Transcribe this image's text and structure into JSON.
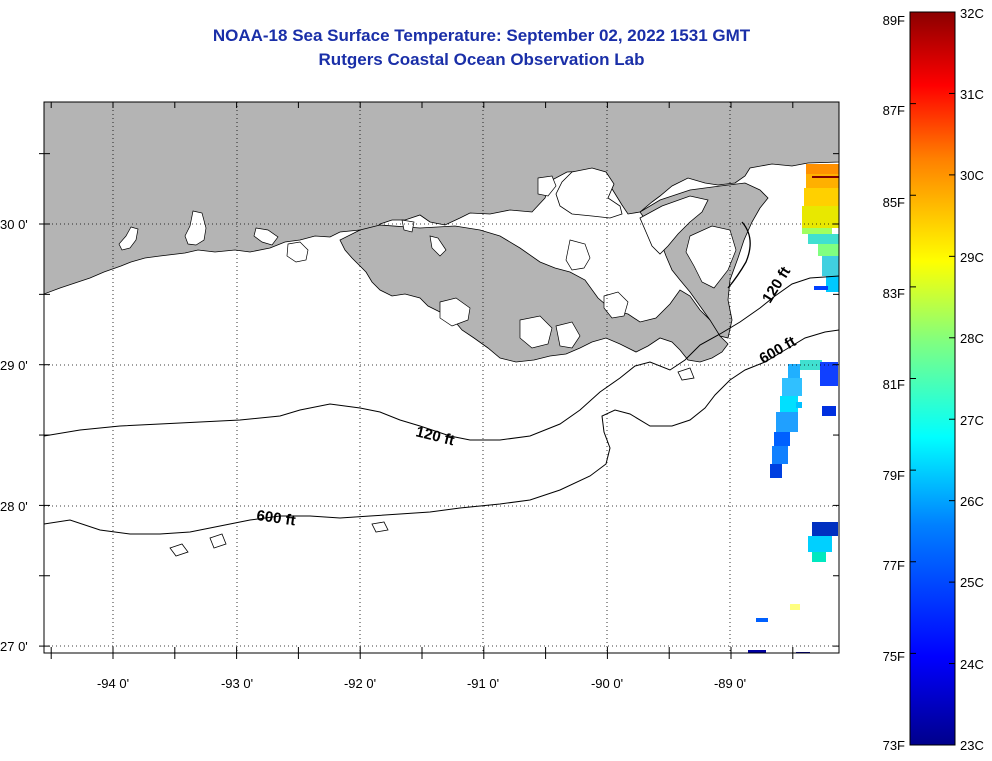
{
  "title": "NOAA-18 Sea Surface Temperature:  September 02, 2022 1531 GMT",
  "subtitle": "Rutgers Coastal Ocean Observation Lab",
  "map": {
    "region": "Northern Gulf of Mexico (Louisiana coast)",
    "lon_range": [
      -94.5,
      -88.1
    ],
    "lat_range": [
      26.95,
      30.85
    ],
    "lon_ticks": [
      "-94 0'",
      "-93 0'",
      "-92 0'",
      "-91 0'",
      "-90 0'",
      "-89 0'"
    ],
    "lat_ticks": [
      "30 0'",
      "29 0'",
      "28 0'",
      "27 0'"
    ],
    "land_color": "#b4b4b4",
    "water_color": "#ffffff",
    "gridlines": "dotted"
  },
  "contours": [
    {
      "label": "120 ft",
      "label_copies": 2
    },
    {
      "label": "600 ft",
      "label_copies": 2
    }
  ],
  "colorbar": {
    "fahrenheit_labels": [
      "89F",
      "87F",
      "85F",
      "83F",
      "81F",
      "79F",
      "77F",
      "75F",
      "73F"
    ],
    "celsius_labels": [
      "32C",
      "31C",
      "30C",
      "29C",
      "28C",
      "27C",
      "26C",
      "25C",
      "24C",
      "23C"
    ],
    "colormap": "jet",
    "colors": [
      "#00008b",
      "#0000ff",
      "#0080ff",
      "#00ffff",
      "#80ff80",
      "#ffff00",
      "#ff8000",
      "#ff0000",
      "#8b0000"
    ]
  }
}
